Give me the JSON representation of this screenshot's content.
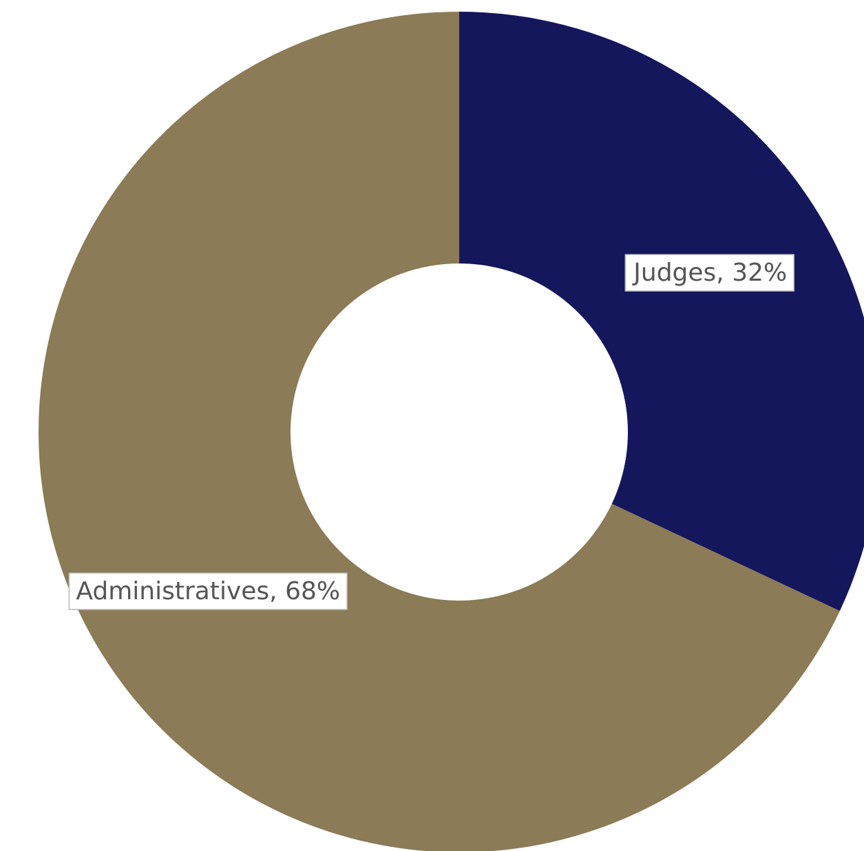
{
  "chart_data": {
    "type": "pie",
    "style": "donut",
    "start_angle_deg": 0,
    "direction": "clockwise",
    "series": [
      {
        "name": "Judges",
        "value": 32,
        "label": "Judges, 32%",
        "color": "#15175c"
      },
      {
        "name": "Administratives",
        "value": 68,
        "label": "Administratives, 68%",
        "color": "#8b7b56"
      }
    ],
    "legend": "none",
    "title": ""
  }
}
